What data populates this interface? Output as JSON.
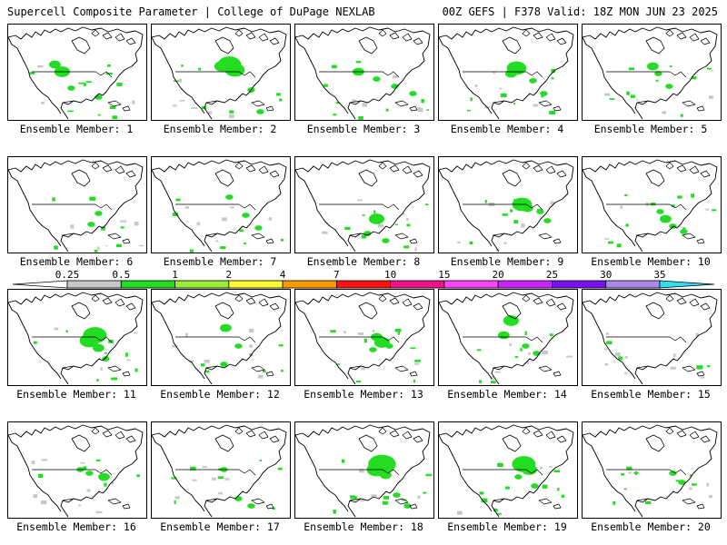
{
  "header": {
    "left": "Supercell Composite Parameter | College of DuPage NEXLAB",
    "right": "00Z GEFS | F378 Valid: 18Z MON JUN 23 2025"
  },
  "member_prefix": "Ensemble Member: ",
  "members": [
    1,
    2,
    3,
    4,
    5,
    6,
    7,
    8,
    9,
    10,
    11,
    12,
    13,
    14,
    15,
    16,
    17,
    18,
    19,
    20
  ],
  "legend": {
    "ticks": [
      "0.25",
      "0.5",
      "1",
      "2",
      "4",
      "7",
      "10",
      "15",
      "20",
      "25",
      "30",
      "35"
    ],
    "colors": [
      "#ffffff",
      "#c8c8c8",
      "#22dd22",
      "#99ee33",
      "#ffff33",
      "#ff9900",
      "#ff1111",
      "#ee1188",
      "#ff44ff",
      "#cc22ff",
      "#7711ee",
      "#aa88ee",
      "#33ddee"
    ]
  }
}
